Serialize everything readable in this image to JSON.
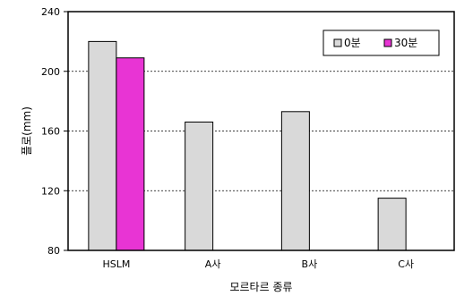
{
  "chart_data": {
    "type": "bar",
    "title": "",
    "xlabel": "모르타르 종류",
    "ylabel": "플로(mm)",
    "categories": [
      "HSLM",
      "A사",
      "B사",
      "C사"
    ],
    "series": [
      {
        "name": "0분",
        "values": [
          220,
          166,
          173,
          115
        ],
        "color": "#d9d9d9"
      },
      {
        "name": "30분",
        "values": [
          209,
          null,
          null,
          null
        ],
        "color": "#e834d4"
      }
    ],
    "ylim": [
      80,
      240
    ],
    "yticks": [
      80,
      120,
      160,
      200,
      240
    ],
    "grid": "horizontal dashed",
    "legend_position": "top-right"
  }
}
